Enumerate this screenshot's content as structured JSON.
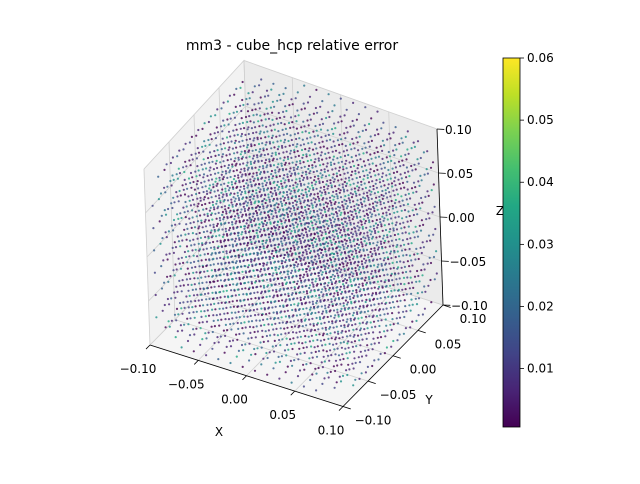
{
  "chart_data": {
    "type": "scatter",
    "projection": "3d",
    "title": "mm3 - cube_hcp relative error",
    "xlabel": "X",
    "ylabel": "Y",
    "zlabel": "Z",
    "xlim": [
      -0.1,
      0.1
    ],
    "ylim": [
      -0.1,
      0.1
    ],
    "zlim": [
      -0.1,
      0.1
    ],
    "xticks": [
      "−0.10",
      "−0.05",
      "0.00",
      "0.05",
      "0.10"
    ],
    "yticks": [
      "−0.10",
      "−0.05",
      "0.00",
      "0.05",
      "0.10"
    ],
    "zticks": [
      "−0.10",
      "−0.05",
      "0.00",
      "0.05",
      "0.10"
    ],
    "grid": true,
    "colormap": "viridis",
    "colorbar": {
      "range": [
        0.0006,
        0.06
      ],
      "ticks": [
        "0.01",
        "0.02",
        "0.03",
        "0.04",
        "0.05",
        "0.06"
      ],
      "placement": "right"
    },
    "points": "regular hcp lattice filling a rounded cube spanning -0.1 to 0.1 on each axis; colour = relative error, mostly 0.005–0.03"
  }
}
